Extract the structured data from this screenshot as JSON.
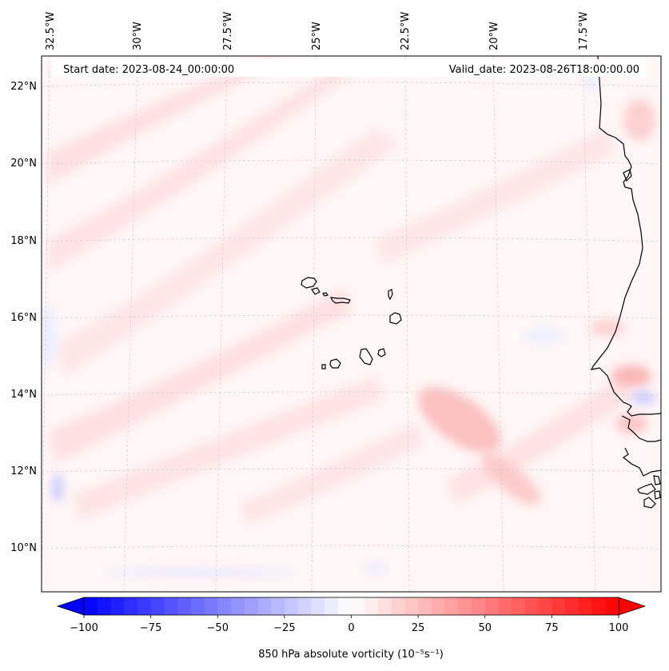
{
  "map": {
    "start_label": "Start date: 2023-08-24_00:00:00",
    "valid_label": "Valid_date: 2023-08-26T18:00:00.00",
    "lon_labels": [
      "32.5°W",
      "30°W",
      "27.5°W",
      "25°W",
      "22.5°W",
      "20°W",
      "17.5°W"
    ],
    "lat_labels": [
      "22°N",
      "20°N",
      "18°N",
      "16°N",
      "14°N",
      "12°N",
      "10°N"
    ],
    "colors": {
      "positive_field": "#ffe3e3",
      "positive_band": "#fdbcbc",
      "negative_field": "#e6e8ff",
      "background_field": "#fff6f6",
      "coastline": "#000000",
      "gridline": "#c8c8c8"
    }
  },
  "colorbar": {
    "label": "850 hPa absolute vorticity (10⁻⁵s⁻¹)",
    "ticks": [
      "−100",
      "−75",
      "−50",
      "−25",
      "0",
      "25",
      "50",
      "75",
      "100"
    ],
    "tick_values": [
      -100,
      -75,
      -50,
      -25,
      0,
      25,
      50,
      75,
      100
    ],
    "min": -100,
    "max": 100,
    "step": 5,
    "extend": "both",
    "colormap": "bwr"
  }
}
